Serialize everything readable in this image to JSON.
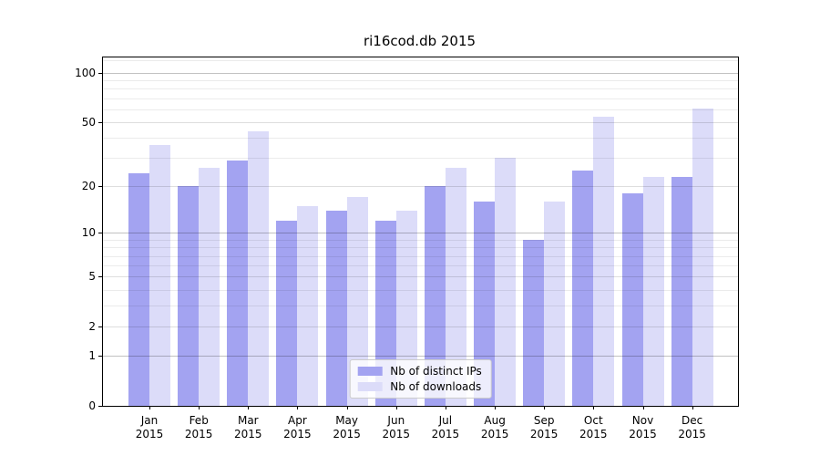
{
  "title": "ri16cod.db 2015",
  "chart_data": {
    "type": "bar",
    "title": "ri16cod.db 2015",
    "categories": [
      "Jan",
      "Feb",
      "Mar",
      "Apr",
      "May",
      "Jun",
      "Jul",
      "Aug",
      "Sep",
      "Oct",
      "Nov",
      "Dec"
    ],
    "x_tick_year": "2015",
    "series": [
      {
        "name": "Nb of distinct IPs",
        "color": "#a3a3f1",
        "values": [
          24,
          20,
          29,
          12,
          14,
          12,
          20,
          16,
          9,
          25,
          18,
          23
        ]
      },
      {
        "name": "Nb of downloads",
        "color": "#dcdcf9",
        "values": [
          36,
          26,
          44,
          15,
          17,
          14,
          26,
          30,
          16,
          54,
          23,
          61
        ]
      }
    ],
    "y_scale": "log1p",
    "y_ticks": [
      0,
      1,
      2,
      5,
      10,
      20,
      50,
      100
    ],
    "y_major_gridlines": [
      1,
      10,
      100
    ],
    "y_minor_gridlines": [
      3,
      4,
      6,
      7,
      8,
      9,
      30,
      40,
      60,
      70,
      80,
      90,
      120
    ],
    "ylim": [
      0,
      125
    ],
    "xlabel": "",
    "ylabel": "",
    "grid": true,
    "legend_position": "lower center"
  },
  "colors": {
    "distinct_ips_bar": "#a3a3f1",
    "downloads_bar": "#dcdcf9",
    "axis": "#000000",
    "background": "#ffffff"
  }
}
